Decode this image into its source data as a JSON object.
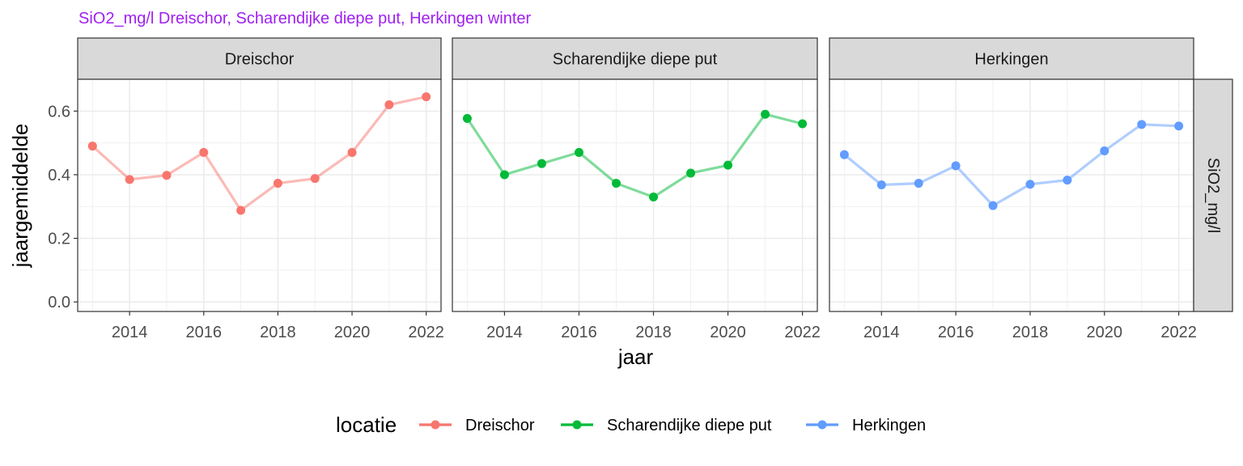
{
  "title": "SiO2_mg/l Dreischor, Scharendijke diepe put, Herkingen winter",
  "colors": {
    "title": "#a020f0"
  },
  "chart_data": {
    "type": "line",
    "xlabel": "jaar",
    "ylabel": "jaargemiddelde",
    "row_strip": "SiO2_mg/l",
    "xlim": [
      2012.6,
      2022.4
    ],
    "ylim": [
      -0.03,
      0.7
    ],
    "x_ticks": [
      2014,
      2016,
      2018,
      2020,
      2022
    ],
    "y_ticks": [
      0.0,
      0.2,
      0.4,
      0.6
    ],
    "y_tick_labels": [
      "0.0",
      "0.2",
      "0.4",
      "0.6"
    ],
    "grid": true,
    "legend": {
      "title": "locatie",
      "position": "bottom"
    },
    "series": [
      {
        "name": "Dreischor",
        "color": "#f8766d",
        "x": [
          2013,
          2014,
          2015,
          2016,
          2017,
          2018,
          2019,
          2020,
          2021,
          2022
        ],
        "values": [
          0.49,
          0.385,
          0.398,
          0.47,
          0.288,
          0.373,
          0.388,
          0.47,
          0.62,
          0.645
        ]
      },
      {
        "name": "Scharendijke diepe put",
        "color": "#00ba38",
        "x": [
          2013,
          2014,
          2015,
          2016,
          2017,
          2018,
          2019,
          2020,
          2021,
          2022
        ],
        "values": [
          0.577,
          0.4,
          0.435,
          0.47,
          0.373,
          0.33,
          0.405,
          0.43,
          0.59,
          0.56
        ]
      },
      {
        "name": "Herkingen",
        "color": "#619cff",
        "x": [
          2013,
          2014,
          2015,
          2016,
          2017,
          2018,
          2019,
          2020,
          2021,
          2022
        ],
        "values": [
          0.463,
          0.368,
          0.373,
          0.428,
          0.303,
          0.37,
          0.383,
          0.475,
          0.558,
          0.553
        ]
      }
    ]
  }
}
